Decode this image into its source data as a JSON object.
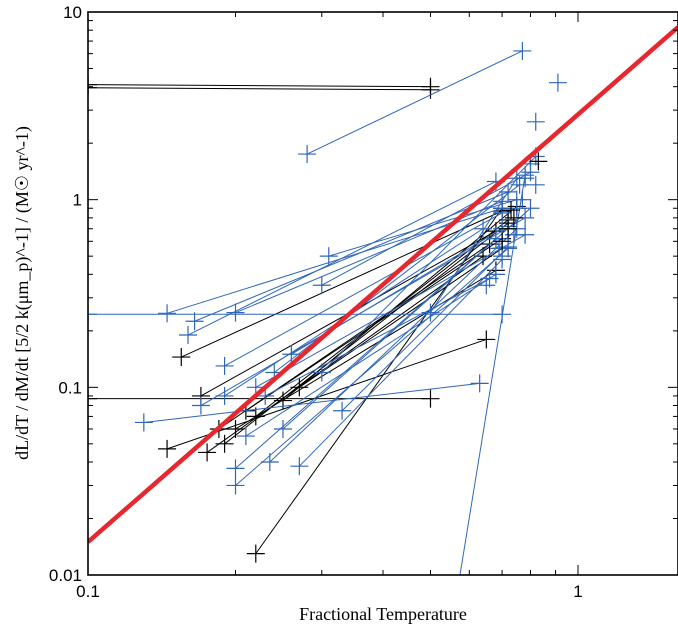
{
  "chart_data": {
    "type": "scatter",
    "title": "",
    "xlabel": "Fractional Temperature",
    "ylabel": "dL/dT / dM/dt [5/2 k(μm_p)^-1] / (M☉ yr^-1)",
    "xscale": "log",
    "yscale": "log",
    "xlim": [
      0.1,
      1.6
    ],
    "ylim": [
      0.01,
      10
    ],
    "x_ticks": [
      0.1,
      1
    ],
    "x_tick_labels": [
      "0.1",
      "1"
    ],
    "y_ticks": [
      0.01,
      0.1,
      1,
      10
    ],
    "y_tick_labels": [
      "0.01",
      "0.1",
      "1",
      "10"
    ],
    "grid": false,
    "colors": {
      "black": "#000000",
      "blue": "#2f66b8",
      "fit": "#e8262d"
    },
    "fit_line": {
      "x": [
        0.1,
        1.6
      ],
      "y": [
        0.015,
        8.3
      ]
    },
    "segments_black": [
      [
        [
          0.1,
          4.1
        ],
        [
          0.5,
          4.0
        ]
      ],
      [
        [
          0.1,
          3.95
        ],
        [
          0.5,
          3.85
        ]
      ],
      [
        [
          0.1,
          0.087
        ],
        [
          0.5,
          0.087
        ]
      ],
      [
        [
          0.155,
          0.145
        ],
        [
          0.7,
          0.87
        ]
      ],
      [
        [
          0.145,
          0.047
        ],
        [
          0.65,
          0.18
        ]
      ],
      [
        [
          0.17,
          0.09
        ],
        [
          0.68,
          0.68
        ]
      ],
      [
        [
          0.22,
          0.013
        ],
        [
          0.7,
          0.9
        ]
      ],
      [
        [
          0.175,
          0.045
        ],
        [
          0.64,
          0.5
        ]
      ],
      [
        [
          0.19,
          0.05
        ],
        [
          0.72,
          0.75
        ]
      ],
      [
        [
          0.2,
          0.06
        ],
        [
          0.68,
          0.42
        ]
      ],
      [
        [
          0.21,
          0.075
        ],
        [
          0.7,
          0.62
        ]
      ],
      [
        [
          0.185,
          0.06
        ],
        [
          0.66,
          0.58
        ]
      ],
      [
        [
          0.25,
          0.085
        ],
        [
          0.75,
          0.92
        ]
      ],
      [
        [
          0.27,
          0.1
        ],
        [
          0.7,
          0.55
        ]
      ],
      [
        [
          0.22,
          0.07
        ],
        [
          0.72,
          0.78
        ]
      ]
    ],
    "segments_blue": [
      [
        [
          0.28,
          1.75
        ],
        [
          0.77,
          6.2
        ]
      ],
      [
        [
          0.1,
          0.245
        ],
        [
          0.7,
          0.245
        ]
      ],
      [
        [
          0.13,
          0.065
        ],
        [
          0.63,
          0.105
        ]
      ],
      [
        [
          0.145,
          0.248
        ],
        [
          0.7,
          0.9
        ]
      ],
      [
        [
          0.16,
          0.19
        ],
        [
          0.68,
          1.25
        ]
      ],
      [
        [
          0.165,
          0.225
        ],
        [
          0.72,
          1.1
        ]
      ],
      [
        [
          0.2,
          0.25
        ],
        [
          0.7,
          0.98
        ]
      ],
      [
        [
          0.31,
          0.5
        ],
        [
          0.75,
          1.0
        ]
      ],
      [
        [
          0.3,
          0.35
        ],
        [
          0.8,
          1.4
        ]
      ],
      [
        [
          0.19,
          0.13
        ],
        [
          0.7,
          0.85
        ]
      ],
      [
        [
          0.19,
          0.09
        ],
        [
          0.64,
          0.7
        ]
      ],
      [
        [
          0.2,
          0.037
        ],
        [
          0.68,
          0.62
        ]
      ],
      [
        [
          0.2,
          0.03
        ],
        [
          0.72,
          0.55
        ]
      ],
      [
        [
          0.235,
          0.04
        ],
        [
          0.75,
          0.7
        ]
      ],
      [
        [
          0.27,
          0.038
        ],
        [
          0.7,
          0.48
        ]
      ],
      [
        [
          0.33,
          0.075
        ],
        [
          0.72,
          0.56
        ]
      ],
      [
        [
          0.5,
          0.25
        ],
        [
          0.75,
          1.3
        ]
      ],
      [
        [
          0.22,
          0.1
        ],
        [
          0.78,
          0.65
        ]
      ],
      [
        [
          0.25,
          0.06
        ],
        [
          0.8,
          0.9
        ]
      ],
      [
        [
          0.21,
          0.055
        ],
        [
          0.68,
          0.4
        ]
      ],
      [
        [
          0.24,
          0.12
        ],
        [
          0.76,
          1.2
        ]
      ],
      [
        [
          0.3,
          0.12
        ],
        [
          0.82,
          1.7
        ]
      ],
      [
        [
          0.26,
          0.15
        ],
        [
          0.7,
          0.7
        ]
      ],
      [
        [
          0.17,
          0.08
        ],
        [
          0.78,
          0.8
        ]
      ],
      [
        [
          0.55,
          0.005
        ],
        [
          0.78,
          1.35
        ]
      ],
      [
        [
          0.23,
          0.09
        ],
        [
          0.66,
          0.38
        ]
      ]
    ],
    "points_blue": [
      [
        0.91,
        4.2
      ],
      [
        0.82,
        2.6
      ],
      [
        0.8,
        1.55
      ],
      [
        0.82,
        1.2
      ],
      [
        0.78,
        1.3
      ],
      [
        0.77,
        1.0
      ],
      [
        0.75,
        0.9
      ],
      [
        0.74,
        0.65
      ],
      [
        0.7,
        0.5
      ],
      [
        0.65,
        0.35
      ],
      [
        0.69,
        0.55
      ],
      [
        0.72,
        0.72
      ]
    ],
    "points_black": [
      [
        0.83,
        1.6
      ],
      [
        0.73,
        0.88
      ],
      [
        0.72,
        0.7
      ],
      [
        0.74,
        0.8
      ],
      [
        0.7,
        0.6
      ]
    ]
  }
}
